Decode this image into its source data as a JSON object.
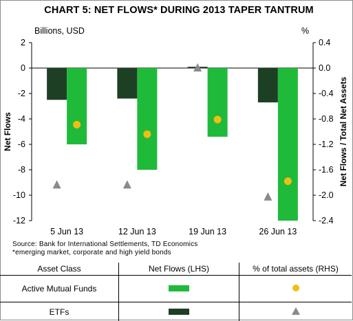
{
  "chart_data": {
    "type": "bar",
    "title": "CHART 5: NET FLOWS* DURING 2013 TAPER TANTRUM",
    "left_unit": "Billions, USD",
    "right_unit": "%",
    "ylabel": "Net Flows",
    "y2label": "Net Flows / Total Net Assets",
    "ylim": [
      -12,
      2
    ],
    "y2lim": [
      -2.4,
      0.4
    ],
    "yticks": [
      "2",
      "0",
      "-2",
      "-4",
      "-6",
      "-8",
      "-10",
      "-12"
    ],
    "y2ticks": [
      "0.4",
      "0.0",
      "-0.4",
      "-0.8",
      "-1.2",
      "-1.6",
      "-2.0",
      "-2.4"
    ],
    "categories": [
      "5 Jun 13",
      "12 Jun 13",
      "19 Jun 13",
      "26 Jun 13"
    ],
    "series": [
      {
        "name": "ETFs",
        "kind": "bar",
        "axis": "left",
        "color": "#1d3f24",
        "values": [
          -2.5,
          -2.4,
          0.1,
          -2.7
        ]
      },
      {
        "name": "Active Mutual Funds",
        "kind": "bar",
        "axis": "left",
        "color": "#1fba3a",
        "values": [
          -6.0,
          -8.0,
          -5.4,
          -12.0
        ]
      },
      {
        "name": "Active Mutual Funds",
        "kind": "marker",
        "marker": "circle",
        "axis": "right",
        "color": "#f2bd13",
        "values": [
          -0.89,
          -1.04,
          -0.81,
          -1.78
        ]
      },
      {
        "name": "ETFs",
        "kind": "marker",
        "marker": "triangle",
        "axis": "right",
        "color": "#8a8a8a",
        "values": [
          -1.84,
          -1.84,
          0.0,
          -2.03
        ]
      }
    ],
    "source_lines": [
      "Source:  Bank for International Settlements,  TD Economics",
      "*emerging  market,  corporate  and  high yield bonds"
    ],
    "legend_table": {
      "headers": [
        "Asset Class",
        "Net Flows (LHS)",
        "% of total assets (RHS)"
      ],
      "rows": [
        {
          "label": "Active Mutual Funds",
          "swatch_color": "#1fba3a",
          "marker": "circle",
          "marker_color": "#f2bd13"
        },
        {
          "label": "ETFs",
          "swatch_color": "#1d3f24",
          "marker": "triangle",
          "marker_color": "#8a8a8a"
        }
      ]
    }
  }
}
